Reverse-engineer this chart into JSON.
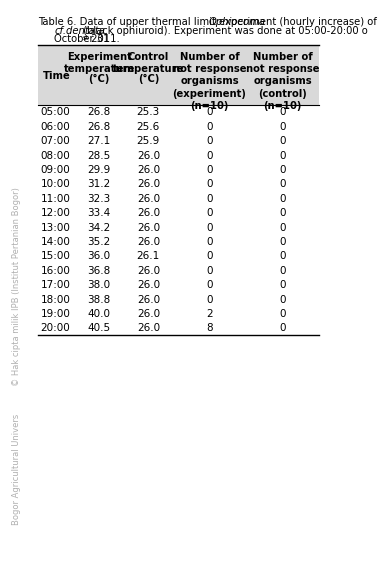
{
  "title_parts": [
    {
      "text": "Table 6. Data of upper thermal limit experiment (hourly increase) of ",
      "italic": false
    },
    {
      "text": "Ophiocoma",
      "italic": true
    }
  ],
  "title_line2_parts": [
    {
      "text": "      ",
      "italic": false
    },
    {
      "text": "cf.dentata",
      "italic": true
    },
    {
      "text": " (black ophiuroid). Experiment was done at 05:00-20:00 o",
      "italic": false
    }
  ],
  "title_line3": "      October 31",
  "title_sup": "st",
  "title_line3b": " 2011.",
  "col_headers_line1": [
    "",
    "Experiment",
    "Control",
    "Number of",
    "Number of"
  ],
  "col_headers_line2": [
    "Time",
    "temperature",
    "temperature",
    "not response",
    "not response"
  ],
  "col_headers_line3": [
    "",
    "(",
    "C)",
    "organisms",
    "organisms"
  ],
  "col_headers_line4": [
    "",
    "",
    "",
    "(experiment)",
    "(control)"
  ],
  "col_headers_line5": [
    "",
    "",
    "",
    "(n=10)",
    "(n=10)"
  ],
  "rows": [
    [
      "05:00",
      "26.8",
      "25.3",
      "0",
      "0"
    ],
    [
      "06:00",
      "26.8",
      "25.6",
      "0",
      "0"
    ],
    [
      "07:00",
      "27.1",
      "25.9",
      "0",
      "0"
    ],
    [
      "08:00",
      "28.5",
      "26.0",
      "0",
      "0"
    ],
    [
      "09:00",
      "29.9",
      "26.0",
      "0",
      "0"
    ],
    [
      "10:00",
      "31.2",
      "26.0",
      "0",
      "0"
    ],
    [
      "11:00",
      "32.3",
      "26.0",
      "0",
      "0"
    ],
    [
      "12:00",
      "33.4",
      "26.0",
      "0",
      "0"
    ],
    [
      "13:00",
      "34.2",
      "26.0",
      "0",
      "0"
    ],
    [
      "14:00",
      "35.2",
      "26.0",
      "0",
      "0"
    ],
    [
      "15:00",
      "36.0",
      "26.1",
      "0",
      "0"
    ],
    [
      "16:00",
      "36.8",
      "26.0",
      "0",
      "0"
    ],
    [
      "17:00",
      "38.0",
      "26.0",
      "0",
      "0"
    ],
    [
      "18:00",
      "38.8",
      "26.0",
      "0",
      "0"
    ],
    [
      "19:00",
      "40.0",
      "26.0",
      "2",
      "0"
    ],
    [
      "20:00",
      "40.5",
      "26.0",
      "8",
      "0"
    ]
  ],
  "header_bg": "#d9d9d9",
  "background_color": "#ffffff",
  "line_color": "#000000",
  "text_color": "#000000",
  "watermark1": "© Hak cipta milik IPB (Institut Pertanian Bogor)",
  "watermark2": "Bogor Agricultural Univers",
  "title_fontsize": 7.2,
  "header_fontsize": 7.2,
  "data_fontsize": 7.5,
  "watermark_color": "#b0b0b0"
}
